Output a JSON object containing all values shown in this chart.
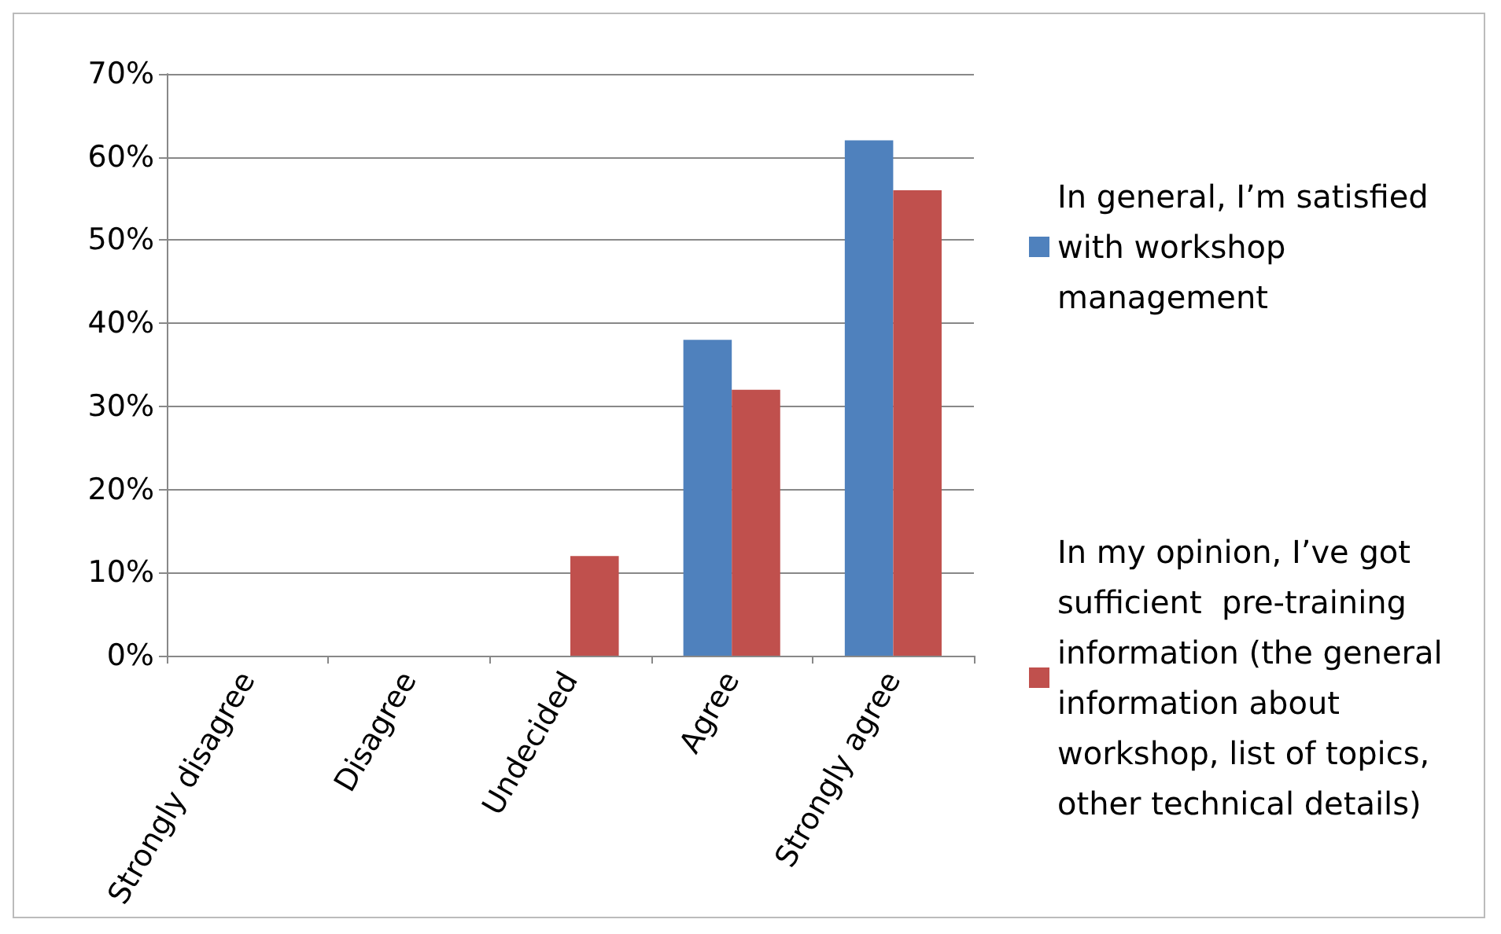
{
  "chart_data": {
    "type": "bar",
    "categories": [
      "Strongly disagree",
      "Disagree",
      "Undecided",
      "Agree",
      "Strongly agree"
    ],
    "series": [
      {
        "name": "In general, I’m satisfied with workshop management",
        "color": "#4f81bd",
        "values": [
          0,
          0,
          0,
          38,
          62
        ]
      },
      {
        "name": "In my opinion, I’ve got sufficient  pre-training information (the general information about workshop, list of topics, other technical details)",
        "color": "#c0504d",
        "values": [
          0,
          0,
          12,
          32,
          56
        ]
      }
    ],
    "ylim": [
      0,
      70
    ],
    "yticks": [
      {
        "value": 0,
        "label": "0%"
      },
      {
        "value": 10,
        "label": "10%"
      },
      {
        "value": 20,
        "label": "20%"
      },
      {
        "value": 30,
        "label": "30%"
      },
      {
        "value": 40,
        "label": "40%"
      },
      {
        "value": 50,
        "label": "50%"
      },
      {
        "value": 60,
        "label": "60%"
      },
      {
        "value": 70,
        "label": "70%"
      }
    ],
    "grid": "y",
    "legend": "right"
  }
}
